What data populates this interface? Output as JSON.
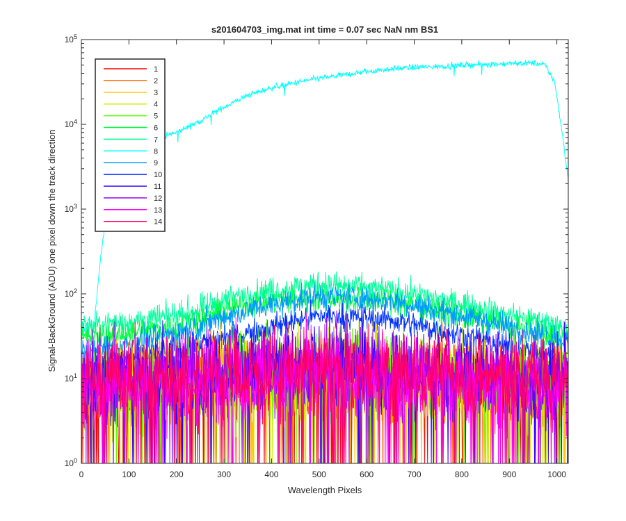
{
  "chart_data": {
    "type": "line",
    "title": "s201604703_img.mat int time = 0.07 sec  NaN nm BS1",
    "xlabel": "Wavelength Pixels",
    "ylabel": "Signal-BackGround (ADU) one pixel down the track direction",
    "xlim": [
      0,
      1024
    ],
    "ylim": [
      1,
      100000
    ],
    "yscale": "log",
    "x_ticks": [
      0,
      100,
      200,
      300,
      400,
      500,
      600,
      700,
      800,
      900,
      1000
    ],
    "x_tick_labels": [
      "0",
      "100",
      "200",
      "300",
      "400",
      "500",
      "600",
      "700",
      "800",
      "900",
      "1000"
    ],
    "y_ticks": [
      1,
      10,
      100,
      1000,
      10000,
      100000
    ],
    "y_tick_labels": [
      {
        "base": "10",
        "exp": "0"
      },
      {
        "base": "10",
        "exp": "1"
      },
      {
        "base": "10",
        "exp": "2"
      },
      {
        "base": "10",
        "exp": "3"
      },
      {
        "base": "10",
        "exp": "4"
      },
      {
        "base": "10",
        "exp": "5"
      }
    ],
    "grid": false,
    "legend_position": "top-left",
    "series": [
      {
        "name": "1",
        "color": "#ff0000",
        "profile": [
          [
            0,
            8
          ],
          [
            300,
            10
          ],
          [
            512,
            11
          ],
          [
            750,
            10
          ],
          [
            1024,
            8
          ]
        ],
        "noise": "high"
      },
      {
        "name": "2",
        "color": "#ff6a00",
        "profile": [
          [
            0,
            8
          ],
          [
            300,
            10
          ],
          [
            512,
            11
          ],
          [
            750,
            10
          ],
          [
            1024,
            8
          ]
        ],
        "noise": "high"
      },
      {
        "name": "3",
        "color": "#ffc400",
        "profile": [
          [
            0,
            8
          ],
          [
            300,
            10
          ],
          [
            512,
            11
          ],
          [
            750,
            10
          ],
          [
            1024,
            8
          ]
        ],
        "noise": "high"
      },
      {
        "name": "4",
        "color": "#c8f000",
        "profile": [
          [
            0,
            8
          ],
          [
            300,
            10
          ],
          [
            512,
            11
          ],
          [
            750,
            10
          ],
          [
            1024,
            8
          ]
        ],
        "noise": "high"
      },
      {
        "name": "5",
        "color": "#5cff00",
        "profile": [
          [
            0,
            9
          ],
          [
            300,
            11
          ],
          [
            512,
            12
          ],
          [
            750,
            11
          ],
          [
            1024,
            9
          ]
        ],
        "noise": "high"
      },
      {
        "name": "6",
        "color": "#00ff3c",
        "profile": [
          [
            0,
            30
          ],
          [
            200,
            40
          ],
          [
            350,
            75
          ],
          [
            500,
            90
          ],
          [
            650,
            80
          ],
          [
            800,
            55
          ],
          [
            1024,
            30
          ]
        ],
        "noise": "medium"
      },
      {
        "name": "7",
        "color": "#00ff99",
        "profile": [
          [
            0,
            40
          ],
          [
            200,
            55
          ],
          [
            350,
            100
          ],
          [
            500,
            130
          ],
          [
            650,
            110
          ],
          [
            800,
            75
          ],
          [
            1024,
            40
          ]
        ],
        "noise": "medium"
      },
      {
        "name": "8",
        "color": "#00ffff",
        "profile": [
          [
            0,
            30
          ],
          [
            15,
            50
          ],
          [
            25,
            35
          ],
          [
            40,
            250
          ],
          [
            55,
            1100
          ],
          [
            70,
            3000
          ],
          [
            100,
            5000
          ],
          [
            150,
            6600
          ],
          [
            200,
            8000
          ],
          [
            250,
            11000
          ],
          [
            300,
            16000
          ],
          [
            350,
            22000
          ],
          [
            400,
            27000
          ],
          [
            450,
            31000
          ],
          [
            500,
            35000
          ],
          [
            550,
            38000
          ],
          [
            600,
            42000
          ],
          [
            650,
            45000
          ],
          [
            700,
            47000
          ],
          [
            750,
            48000
          ],
          [
            800,
            50000
          ],
          [
            850,
            51000
          ],
          [
            900,
            52000
          ],
          [
            950,
            53000
          ],
          [
            975,
            50000
          ],
          [
            995,
            32000
          ],
          [
            1010,
            9000
          ],
          [
            1024,
            2200
          ]
        ],
        "noise": "low"
      },
      {
        "name": "9",
        "color": "#0099ff",
        "profile": [
          [
            0,
            20
          ],
          [
            200,
            35
          ],
          [
            350,
            65
          ],
          [
            500,
            95
          ],
          [
            650,
            85
          ],
          [
            800,
            55
          ],
          [
            1024,
            28
          ]
        ],
        "noise": "medium"
      },
      {
        "name": "10",
        "color": "#0033ff",
        "profile": [
          [
            0,
            14
          ],
          [
            200,
            22
          ],
          [
            350,
            35
          ],
          [
            500,
            55
          ],
          [
            650,
            50
          ],
          [
            800,
            32
          ],
          [
            1024,
            16
          ]
        ],
        "noise": "medium"
      },
      {
        "name": "11",
        "color": "#3300ff",
        "profile": [
          [
            0,
            10
          ],
          [
            300,
            13
          ],
          [
            512,
            14
          ],
          [
            750,
            13
          ],
          [
            1024,
            10
          ]
        ],
        "noise": "high"
      },
      {
        "name": "12",
        "color": "#9900ff",
        "profile": [
          [
            0,
            9
          ],
          [
            300,
            11
          ],
          [
            512,
            12
          ],
          [
            750,
            11
          ],
          [
            1024,
            9
          ]
        ],
        "noise": "high"
      },
      {
        "name": "13",
        "color": "#ff00ff",
        "profile": [
          [
            0,
            8
          ],
          [
            300,
            10
          ],
          [
            512,
            11
          ],
          [
            750,
            10
          ],
          [
            1024,
            8
          ]
        ],
        "noise": "high"
      },
      {
        "name": "14",
        "color": "#ff0066",
        "profile": [
          [
            0,
            10
          ],
          [
            300,
            12
          ],
          [
            512,
            13
          ],
          [
            750,
            12
          ],
          [
            1024,
            10
          ]
        ],
        "noise": "high"
      }
    ]
  }
}
